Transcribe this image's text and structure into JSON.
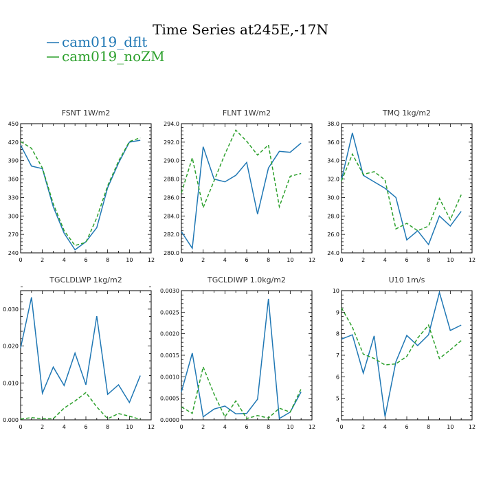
{
  "figure_title": "Time Series at245E,-17N",
  "legend": [
    {
      "label": "cam019_dflt",
      "color": "#1f77b4",
      "dash": "solid"
    },
    {
      "label": "cam019_noZM",
      "color": "#2ca02c",
      "dash": "dashed"
    }
  ],
  "chart_data": [
    {
      "type": "line",
      "title": "FSNT   1W/m2",
      "xlim": [
        0,
        12
      ],
      "ylim": [
        240,
        450
      ],
      "xticks": [
        0,
        2,
        4,
        6,
        8,
        10,
        12
      ],
      "yticks": [
        240,
        270,
        300,
        330,
        360,
        390,
        420,
        450
      ],
      "ytick_labels": [
        "240",
        "270",
        "300",
        "330",
        "360",
        "390",
        "420",
        "450"
      ],
      "x": [
        0,
        1,
        2,
        3,
        4,
        5,
        6,
        7,
        8,
        9,
        10,
        11
      ],
      "series": [
        {
          "name": "cam019_dflt",
          "values": [
            415,
            381,
            377,
            315,
            272,
            245,
            258,
            281,
            346,
            386,
            420,
            423
          ]
        },
        {
          "name": "cam019_noZM",
          "values": [
            421,
            410,
            378,
            320,
            276,
            252,
            257,
            297,
            349,
            389,
            421,
            427
          ]
        }
      ]
    },
    {
      "type": "line",
      "title": "FLNT   1W/m2",
      "xlim": [
        0,
        12
      ],
      "ylim": [
        280,
        294
      ],
      "xticks": [
        0,
        2,
        4,
        6,
        8,
        10,
        12
      ],
      "yticks": [
        280,
        282,
        284,
        286,
        288,
        290,
        292,
        294
      ],
      "ytick_labels": [
        "280.0",
        "282.0",
        "284.0",
        "286.0",
        "288.0",
        "290.0",
        "292.0",
        "294.0"
      ],
      "x": [
        0,
        1,
        2,
        3,
        4,
        5,
        6,
        7,
        8,
        9,
        10,
        11
      ],
      "series": [
        {
          "name": "cam019_dflt",
          "values": [
            282.3,
            280.5,
            291.5,
            288.0,
            287.7,
            288.4,
            289.8,
            284.2,
            289.2,
            291.0,
            290.9,
            291.9
          ]
        },
        {
          "name": "cam019_noZM",
          "values": [
            286.5,
            290.3,
            284.9,
            287.8,
            290.7,
            293.3,
            292.1,
            290.6,
            291.7,
            285.0,
            288.3,
            288.6
          ]
        }
      ]
    },
    {
      "type": "line",
      "title": "TMQ   1kg/m2",
      "xlim": [
        0,
        12
      ],
      "ylim": [
        24,
        38
      ],
      "xticks": [
        0,
        2,
        4,
        6,
        8,
        10,
        12
      ],
      "yticks": [
        24,
        26,
        28,
        30,
        32,
        34,
        36,
        38
      ],
      "ytick_labels": [
        "24.0",
        "26.0",
        "28.0",
        "30.0",
        "32.0",
        "34.0",
        "36.0",
        "38.0"
      ],
      "x": [
        0,
        1,
        2,
        3,
        4,
        5,
        6,
        7,
        8,
        9,
        10,
        11
      ],
      "series": [
        {
          "name": "cam019_dflt",
          "values": [
            31.9,
            37.0,
            32.4,
            31.7,
            31.0,
            30.0,
            25.4,
            26.4,
            24.9,
            28.0,
            26.9,
            28.5
          ]
        },
        {
          "name": "cam019_noZM",
          "values": [
            31.8,
            34.7,
            32.5,
            32.8,
            31.9,
            26.6,
            27.2,
            26.4,
            26.9,
            29.9,
            27.6,
            30.3
          ]
        }
      ]
    },
    {
      "type": "line",
      "title": "TGCLDLWP   1kg/m2",
      "xlim": [
        0,
        12
      ],
      "ylim": [
        0,
        0.035
      ],
      "xticks": [
        0,
        2,
        4,
        6,
        8,
        10,
        12
      ],
      "yticks": [
        0,
        0.01,
        0.02,
        0.03
      ],
      "ytick_labels": [
        "0.000",
        "0.010",
        "0.020",
        "0.030"
      ],
      "x": [
        0,
        1,
        2,
        3,
        4,
        5,
        6,
        7,
        8,
        9,
        10,
        11
      ],
      "series": [
        {
          "name": "cam019_dflt",
          "values": [
            0.0195,
            0.0332,
            0.0072,
            0.0143,
            0.0093,
            0.0181,
            0.0095,
            0.0281,
            0.0069,
            0.0095,
            0.0047,
            0.012
          ]
        },
        {
          "name": "cam019_noZM",
          "values": [
            0.0002,
            0.0006,
            0.0003,
            0.0003,
            0.0032,
            0.0051,
            0.0074,
            0.0035,
            0.0003,
            0.0017,
            0.001,
            0.0001
          ]
        }
      ]
    },
    {
      "type": "line",
      "title": "TGCLDIWP   1.0kg/m2",
      "xlim": [
        0,
        12
      ],
      "ylim": [
        0,
        0.003
      ],
      "xticks": [
        0,
        2,
        4,
        6,
        8,
        10,
        12
      ],
      "yticks": [
        0,
        0.0005,
        0.001,
        0.0015,
        0.002,
        0.0025,
        0.003
      ],
      "ytick_labels": [
        "0.0000",
        "0.0005",
        "0.0010",
        "0.0015",
        "0.0020",
        "0.0025",
        "0.0030"
      ],
      "x": [
        0,
        1,
        2,
        3,
        4,
        5,
        6,
        7,
        8,
        9,
        10,
        11
      ],
      "series": [
        {
          "name": "cam019_dflt",
          "values": [
            0.00065,
            0.00155,
            7e-05,
            0.00025,
            0.00032,
            0.00014,
            0.00015,
            0.00048,
            0.00281,
            3e-05,
            0.00018,
            0.00065
          ]
        },
        {
          "name": "cam019_noZM",
          "values": [
            0.0003,
            0.00015,
            0.00123,
            0.0006,
            7e-05,
            0.00044,
            3e-05,
            0.0001,
            4e-05,
            0.00027,
            0.00018,
            0.00072
          ]
        }
      ]
    },
    {
      "type": "line",
      "title": "U10   1m/s",
      "xlim": [
        0,
        12
      ],
      "ylim": [
        4,
        10
      ],
      "xticks": [
        0,
        2,
        4,
        6,
        8,
        10,
        12
      ],
      "yticks": [
        4,
        5,
        6,
        7,
        8,
        9,
        10
      ],
      "ytick_labels": [
        "4",
        "5",
        "6",
        "7",
        "8",
        "9",
        "10"
      ],
      "x": [
        0,
        1,
        2,
        3,
        4,
        5,
        6,
        7,
        8,
        9,
        10,
        11
      ],
      "series": [
        {
          "name": "cam019_dflt",
          "values": [
            7.75,
            7.95,
            6.17,
            7.9,
            4.15,
            6.7,
            7.92,
            7.45,
            7.95,
            9.92,
            8.15,
            8.4
          ]
        },
        {
          "name": "cam019_noZM",
          "values": [
            9.2,
            8.3,
            7.05,
            6.85,
            6.55,
            6.6,
            6.95,
            7.8,
            8.4,
            6.85,
            7.25,
            7.68
          ]
        }
      ]
    }
  ]
}
